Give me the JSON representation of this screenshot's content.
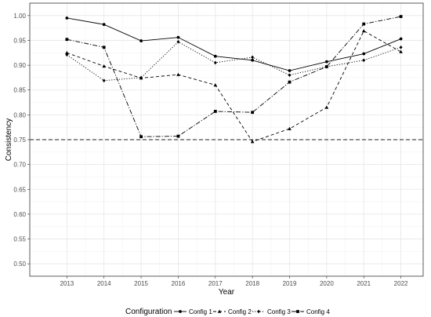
{
  "chart_data": {
    "type": "line",
    "xlabel": "Year",
    "ylabel": "Consistency",
    "x": [
      2013,
      2014,
      2015,
      2016,
      2017,
      2018,
      2019,
      2020,
      2021,
      2022
    ],
    "x_ticks": [
      "2013",
      "2014",
      "2015",
      "2016",
      "2017",
      "2018",
      "2019",
      "2020",
      "2021",
      "2022"
    ],
    "ylim": [
      0.475,
      1.025
    ],
    "y_ticks": [
      "0.50",
      "0.55",
      "0.60",
      "0.65",
      "0.70",
      "0.75",
      "0.80",
      "0.85",
      "0.90",
      "0.95",
      "1.00"
    ],
    "grid": true,
    "reference_line": {
      "y": 0.75,
      "style": "dashed"
    },
    "legend": {
      "title": "Configuration",
      "position": "bottom"
    },
    "series": [
      {
        "name": "Config 1",
        "dash": "solid",
        "marker": "circle",
        "values": [
          0.995,
          0.982,
          0.949,
          0.956,
          0.918,
          0.91,
          0.889,
          0.907,
          0.923,
          0.953
        ]
      },
      {
        "name": "Config 2",
        "dash": "dashed",
        "marker": "triangle",
        "values": [
          0.925,
          0.898,
          0.874,
          0.881,
          0.86,
          0.746,
          0.772,
          0.815,
          0.969,
          0.927
        ]
      },
      {
        "name": "Config 3",
        "dash": "dotted",
        "marker": "diamond",
        "values": [
          0.921,
          0.869,
          0.875,
          0.947,
          0.905,
          0.916,
          0.88,
          0.897,
          0.91,
          0.936
        ]
      },
      {
        "name": "Config 4",
        "dash": "dashdot",
        "marker": "square",
        "values": [
          0.952,
          0.936,
          0.756,
          0.757,
          0.807,
          0.805,
          0.866,
          0.897,
          0.983,
          0.998
        ]
      }
    ]
  }
}
